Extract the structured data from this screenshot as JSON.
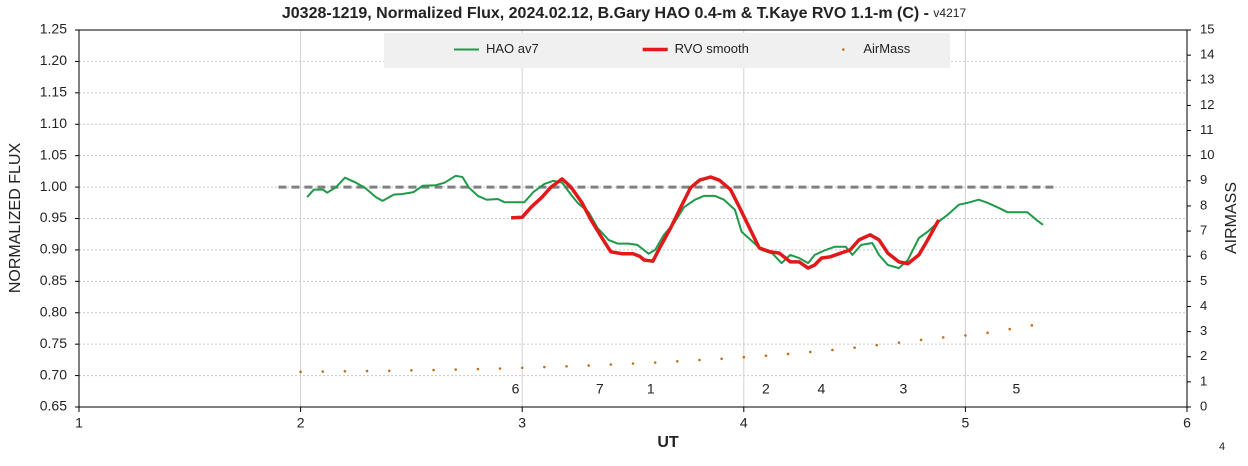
{
  "chart_data": {
    "type": "line",
    "title": "J0328-1219, Normalized Flux, 2024.02.12, B.Gary HAO 0.4-m & T.Kaye RVO 1.1-m (C) - ",
    "version": "v4217",
    "corner_label": "4",
    "x_label": "UT",
    "y_label": "NORMALIZED FLUX",
    "y2_label": "AIRMASS",
    "xlim": [
      1,
      6
    ],
    "xticks": [
      1,
      2,
      3,
      4,
      5,
      6
    ],
    "ylim": [
      0.65,
      1.25
    ],
    "yticks": [
      {
        "value": 0.65,
        "label": "0.65"
      },
      {
        "value": 0.7,
        "label": "0.70"
      },
      {
        "value": 0.75,
        "label": "0.75"
      },
      {
        "value": 0.8,
        "label": "0.80"
      },
      {
        "value": 0.85,
        "label": "0.85"
      },
      {
        "value": 0.9,
        "label": "0.90"
      },
      {
        "value": 0.95,
        "label": "0.95"
      },
      {
        "value": 1.0,
        "label": "1.00"
      },
      {
        "value": 1.05,
        "label": "1.05"
      },
      {
        "value": 1.1,
        "label": "1.10"
      },
      {
        "value": 1.15,
        "label": "1.15"
      },
      {
        "value": 1.2,
        "label": "1.20"
      },
      {
        "value": 1.25,
        "label": "1.25"
      }
    ],
    "y2lim": [
      0,
      15
    ],
    "y2ticks": [
      0,
      1,
      2,
      3,
      4,
      5,
      6,
      7,
      8,
      9,
      10,
      11,
      12,
      13,
      14,
      15
    ],
    "grid": true,
    "legend": "top-center",
    "reference_line": {
      "x": [
        1.9,
        5.4
      ],
      "y": 1.0,
      "color": "#808080",
      "dashed": true
    },
    "annotations": [
      {
        "text": "6",
        "x": 2.97,
        "y": 0.677
      },
      {
        "text": "7",
        "x": 3.35,
        "y": 0.677
      },
      {
        "text": "1",
        "x": 3.58,
        "y": 0.677
      },
      {
        "text": "2",
        "x": 4.1,
        "y": 0.677
      },
      {
        "text": "4",
        "x": 4.35,
        "y": 0.677
      },
      {
        "text": "3",
        "x": 4.72,
        "y": 0.677
      },
      {
        "text": "5",
        "x": 5.23,
        "y": 0.677
      }
    ],
    "series": [
      {
        "name": "HAO av7",
        "color": "#1e9a4a",
        "width": 2,
        "marker": false,
        "x": [
          2.03,
          2.06,
          2.1,
          2.12,
          2.16,
          2.2,
          2.25,
          2.29,
          2.34,
          2.37,
          2.42,
          2.46,
          2.51,
          2.55,
          2.61,
          2.65,
          2.7,
          2.73,
          2.76,
          2.8,
          2.84,
          2.89,
          2.92,
          2.97,
          3.01,
          3.05,
          3.1,
          3.14,
          3.18,
          3.22,
          3.25,
          3.3,
          3.34,
          3.39,
          3.43,
          3.48,
          3.52,
          3.57,
          3.6,
          3.64,
          3.69,
          3.73,
          3.78,
          3.82,
          3.87,
          3.91,
          3.96,
          3.99,
          4.04,
          4.08,
          4.13,
          4.17,
          4.21,
          4.25,
          4.29,
          4.32,
          4.37,
          4.41,
          4.46,
          4.49,
          4.53,
          4.58,
          4.61,
          4.65,
          4.7,
          4.74,
          4.79,
          4.83,
          4.88,
          4.92,
          4.97,
          5.01,
          5.06,
          5.1,
          5.15,
          5.19,
          5.24,
          5.28,
          5.32,
          5.35
        ],
        "values": [
          0.984,
          0.996,
          0.996,
          0.991,
          1.0,
          1.015,
          1.007,
          0.999,
          0.984,
          0.978,
          0.988,
          0.989,
          0.992,
          1.002,
          1.003,
          1.007,
          1.018,
          1.016,
          0.999,
          0.986,
          0.98,
          0.981,
          0.976,
          0.976,
          0.976,
          0.992,
          1.005,
          1.01,
          1.007,
          0.988,
          0.975,
          0.96,
          0.935,
          0.916,
          0.91,
          0.91,
          0.908,
          0.894,
          0.9,
          0.924,
          0.945,
          0.968,
          0.98,
          0.986,
          0.986,
          0.98,
          0.964,
          0.929,
          0.913,
          0.9,
          0.894,
          0.879,
          0.892,
          0.887,
          0.879,
          0.892,
          0.9,
          0.905,
          0.905,
          0.892,
          0.908,
          0.911,
          0.892,
          0.876,
          0.871,
          0.884,
          0.919,
          0.929,
          0.945,
          0.956,
          0.972,
          0.975,
          0.98,
          0.975,
          0.967,
          0.96,
          0.96,
          0.96,
          0.948,
          0.94
        ]
      },
      {
        "name": "RVO smooth",
        "color": "#e0191a",
        "width": 3.5,
        "marker": false,
        "x": [
          2.95,
          3.0,
          3.04,
          3.09,
          3.13,
          3.18,
          3.22,
          3.27,
          3.31,
          3.36,
          3.4,
          3.45,
          3.5,
          3.53,
          3.55,
          3.59,
          3.62,
          3.67,
          3.71,
          3.76,
          3.8,
          3.85,
          3.89,
          3.94,
          3.98,
          4.03,
          4.07,
          4.12,
          4.16,
          4.21,
          4.25,
          4.29,
          4.32,
          4.35,
          4.39,
          4.43,
          4.48,
          4.52,
          4.57,
          4.61,
          4.65,
          4.7,
          4.74,
          4.79,
          4.83,
          4.88
        ],
        "values": [
          0.951,
          0.952,
          0.968,
          0.984,
          1.0,
          1.013,
          1.0,
          0.975,
          0.948,
          0.919,
          0.897,
          0.894,
          0.894,
          0.89,
          0.884,
          0.882,
          0.903,
          0.935,
          0.964,
          0.999,
          1.011,
          1.016,
          1.011,
          0.996,
          0.968,
          0.932,
          0.903,
          0.897,
          0.895,
          0.881,
          0.881,
          0.871,
          0.876,
          0.887,
          0.889,
          0.894,
          0.9,
          0.916,
          0.924,
          0.916,
          0.895,
          0.881,
          0.878,
          0.892,
          0.916,
          0.948
        ]
      },
      {
        "name": "AirMass",
        "color": "#c0701e",
        "width": 0,
        "marker": true,
        "axis": "y2",
        "x": [
          2.0,
          2.1,
          2.2,
          2.3,
          2.4,
          2.5,
          2.6,
          2.7,
          2.8,
          2.9,
          3.0,
          3.1,
          3.2,
          3.3,
          3.4,
          3.5,
          3.6,
          3.7,
          3.8,
          3.9,
          4.0,
          4.1,
          4.2,
          4.3,
          4.4,
          4.5,
          4.6,
          4.7,
          4.8,
          4.9,
          5.0,
          5.1,
          5.2,
          5.3
        ],
        "values": [
          1.4,
          1.41,
          1.42,
          1.43,
          1.44,
          1.46,
          1.47,
          1.49,
          1.51,
          1.53,
          1.56,
          1.59,
          1.62,
          1.65,
          1.69,
          1.73,
          1.77,
          1.82,
          1.87,
          1.92,
          1.98,
          2.04,
          2.11,
          2.19,
          2.27,
          2.36,
          2.46,
          2.56,
          2.67,
          2.77,
          2.85,
          2.95,
          3.1,
          3.25
        ]
      }
    ]
  }
}
